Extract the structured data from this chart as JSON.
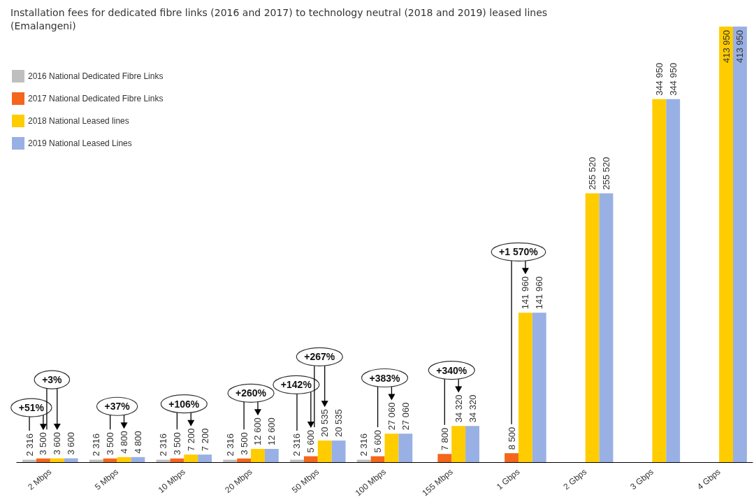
{
  "chart_data": {
    "type": "bar",
    "title": "Installation fees for dedicated fibre links (2016 and 2017) to technology neutral (2018 and 2019) leased lines",
    "subtitle": "(Emalangeni)",
    "categories": [
      "2 Mbps",
      "5 Mbps",
      "10 Mbps",
      "20 Mbps",
      "50 Mbps",
      "100 Mbps",
      "155 Mbps",
      "1 Gbps",
      "2 Gbps",
      "3 Gbps",
      "4 Gbps"
    ],
    "series": [
      {
        "name": "2016 National Dedicated Fibre Links",
        "color": "#bfbfbf",
        "values": [
          2316,
          2316,
          2316,
          2316,
          2316,
          2316,
          null,
          null,
          null,
          null,
          null
        ],
        "value_labels": [
          "2 316",
          "2 316",
          "2 316",
          "2 316",
          "2 316",
          "2 316",
          null,
          null,
          null,
          null,
          null
        ]
      },
      {
        "name": "2017 National Dedicated Fibre Links",
        "color": "#f4661b",
        "values": [
          3500,
          3500,
          3500,
          3500,
          5600,
          5600,
          7800,
          8500,
          null,
          null,
          null
        ],
        "value_labels": [
          "3 500",
          "3 500",
          "3 500",
          "3 500",
          "5 600",
          "5 600",
          "7 800",
          "8 500",
          null,
          null,
          null
        ]
      },
      {
        "name": "2018 National Leased lines",
        "color": "#ffcc00",
        "values": [
          3600,
          4800,
          7200,
          12600,
          20535,
          27060,
          34320,
          141960,
          255520,
          344950,
          413950
        ],
        "value_labels": [
          "3 600",
          "4 800",
          "7 200",
          "12 600",
          "20 535",
          "27 060",
          "34 320",
          "141 960",
          "255 520",
          "344 950",
          "413 950"
        ]
      },
      {
        "name": "2019 National Leased Lines",
        "color": "#99b0e4",
        "values": [
          3600,
          4800,
          7200,
          12600,
          20535,
          27060,
          34320,
          141960,
          255520,
          344950,
          413950
        ],
        "value_labels": [
          "3 600",
          "4 800",
          "7 200",
          "12 600",
          "20 535",
          "27 060",
          "34 320",
          "141 960",
          "255 520",
          "344 950",
          "413 950"
        ]
      }
    ],
    "legend": "top left",
    "annotations": [
      "+51%",
      "+3%",
      "+37%",
      "+106%",
      "+260%",
      "+142%",
      "+267%",
      "+383%",
      "+340%",
      "+1 570%"
    ]
  }
}
